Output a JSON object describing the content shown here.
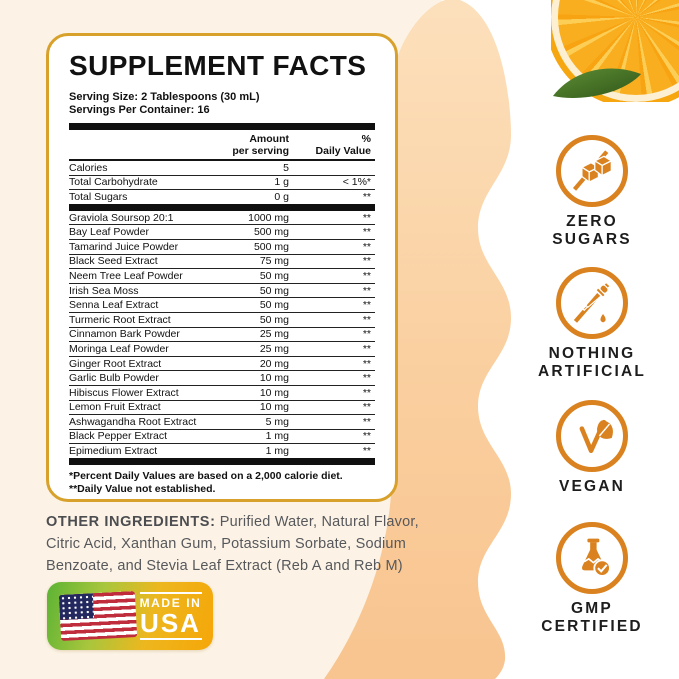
{
  "panel": {
    "title": "SUPPLEMENT FACTS",
    "serving_size": "Serving Size: 2 Tablespoons (30 mL)",
    "servings_per_container": "Servings Per Container: 16",
    "amount_header": "Amount\nper serving",
    "dv_header": "%\nDaily Value",
    "rows": [
      {
        "n": "Calories",
        "a": "5",
        "d": ""
      },
      {
        "n": "Total Carbohydrate",
        "a": "1 g",
        "d": "< 1%*"
      },
      {
        "n": "Total Sugars",
        "a": "0 g",
        "d": "**"
      },
      {
        "bar": true
      },
      {
        "n": "Graviola Soursop 20:1",
        "a": "1000 mg",
        "d": "**"
      },
      {
        "n": "Bay Leaf Powder",
        "a": "500 mg",
        "d": "**"
      },
      {
        "n": "Tamarind Juice Powder",
        "a": "500 mg",
        "d": "**"
      },
      {
        "n": "Black Seed Extract",
        "a": "75 mg",
        "d": "**"
      },
      {
        "n": "Neem Tree Leaf Powder",
        "a": "50 mg",
        "d": "**"
      },
      {
        "n": "Irish Sea Moss",
        "a": "50 mg",
        "d": "**"
      },
      {
        "n": "Senna Leaf Extract",
        "a": "50 mg",
        "d": "**"
      },
      {
        "n": "Turmeric Root Extract",
        "a": "50 mg",
        "d": "**"
      },
      {
        "n": "Cinnamon Bark Powder",
        "a": "25 mg",
        "d": "**"
      },
      {
        "n": "Moringa Leaf Powder",
        "a": "25 mg",
        "d": "**"
      },
      {
        "n": "Ginger Root Extract",
        "a": "20 mg",
        "d": "**"
      },
      {
        "n": "Garlic Bulb Powder",
        "a": "10 mg",
        "d": "**"
      },
      {
        "n": "Hibiscus Flower Extract",
        "a": "10 mg",
        "d": "**"
      },
      {
        "n": "Lemon Fruit Extract",
        "a": "10 mg",
        "d": "**"
      },
      {
        "n": "Ashwagandha Root Extract",
        "a": "5 mg",
        "d": "**"
      },
      {
        "n": "Black Pepper Extract",
        "a": "1 mg",
        "d": "**"
      },
      {
        "n": "Epimedium Extract",
        "a": "1 mg",
        "d": "**"
      },
      {
        "bar": true
      }
    ],
    "footnotes": [
      "*Percent Daily Values are based on a 2,000 calorie diet.",
      "**Daily Value not established."
    ]
  },
  "other_ingredients": {
    "label": "OTHER INGREDIENTS:",
    "text": " Purified Water, Natural Flavor, Citric Acid, Xanthan Gum, Potassium Sorbate, Sodium Benzoate, and Stevia Leaf Extract (Reb A and Reb M)"
  },
  "usa_badge": {
    "line1": "MADE IN",
    "line2": "USA"
  },
  "badges": [
    {
      "id": "zero-sugars",
      "lines": [
        "ZERO",
        "SUGARS"
      ]
    },
    {
      "id": "nothing-artificial",
      "lines": [
        "NOTHING",
        "ARTIFICIAL"
      ]
    },
    {
      "id": "vegan",
      "lines": [
        "VEGAN"
      ]
    },
    {
      "id": "gmp-certified",
      "lines": [
        "GMP",
        "CERTIFIED"
      ]
    }
  ],
  "colors": {
    "accent_orange": "#D9821F",
    "gold_border": "#D8A12B",
    "peach_wave": "#F9CD9E",
    "cream_background": "#FCF3E6",
    "usa_green": "#5CB335",
    "usa_gold": "#F5A608"
  }
}
